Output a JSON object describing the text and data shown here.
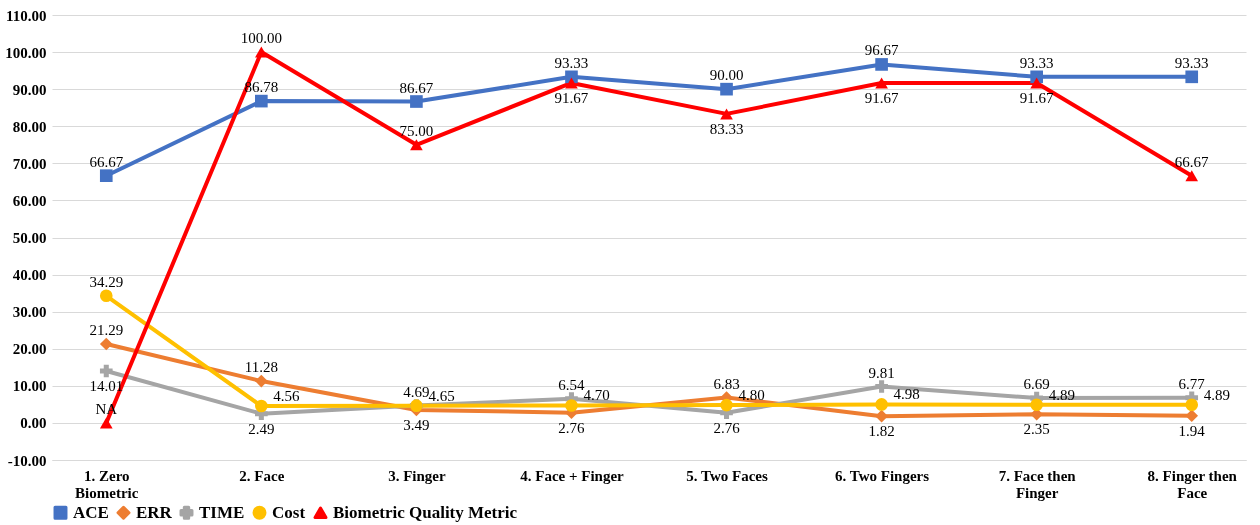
{
  "chart_data": {
    "type": "line",
    "categories": [
      "1. Zero Biometric",
      "2. Face",
      "3. Finger",
      "4. Face + Finger",
      "5. Two Faces",
      "6. Two Fingers",
      "7. Face then Finger",
      "8. Finger then Face"
    ],
    "series": [
      {
        "name": "ACE",
        "color": "#4472c4",
        "marker": "square",
        "values": [
          66.67,
          86.78,
          86.67,
          93.33,
          90.0,
          96.67,
          93.33,
          93.33
        ],
        "value_labels": [
          "66.67",
          "86.78",
          "86.67",
          "93.33",
          "90.00",
          "96.67",
          "93.33",
          "93.33"
        ]
      },
      {
        "name": "ERR",
        "color": "#ed7d31",
        "marker": "diamond",
        "values": [
          21.29,
          11.28,
          3.49,
          2.76,
          6.83,
          1.82,
          2.35,
          1.94
        ],
        "value_labels": [
          "21.29",
          "11.28",
          "3.49",
          "2.76",
          "6.83",
          "1.82",
          "2.35",
          "1.94"
        ]
      },
      {
        "name": "TIME",
        "color": "#a5a5a5",
        "marker": "cross",
        "values": [
          14.01,
          2.49,
          4.69,
          6.54,
          2.76,
          9.81,
          6.69,
          6.77
        ],
        "value_labels": [
          "14.01",
          "2.49",
          "4.69",
          "6.54",
          "2.76",
          "9.81",
          "6.69",
          "6.77"
        ]
      },
      {
        "name": "Cost",
        "color": "#ffc000",
        "marker": "circle",
        "values": [
          34.29,
          4.56,
          4.65,
          4.7,
          4.8,
          4.98,
          4.89,
          4.89
        ],
        "value_labels": [
          "34.29",
          "4.56",
          "4.65",
          "4.70",
          "4.80",
          "4.98",
          "4.89",
          "4.89"
        ]
      },
      {
        "name": "Biometric Quality Metric",
        "color": "#ff0000",
        "marker": "triangle",
        "values": [
          0,
          100.0,
          75.0,
          91.67,
          83.33,
          91.67,
          91.67,
          66.67
        ],
        "value_labels": [
          "NA",
          "100.00",
          "75.00",
          "91.67",
          "83.33",
          "91.67",
          "91.67",
          "66.67"
        ]
      }
    ],
    "ylim": [
      -10,
      110
    ],
    "yticks": [
      {
        "value": -10,
        "label": "-10.00"
      },
      {
        "value": 0,
        "label": "0.00"
      },
      {
        "value": 10,
        "label": "10.00"
      },
      {
        "value": 20,
        "label": "20.00"
      },
      {
        "value": 30,
        "label": "30.00"
      },
      {
        "value": 40,
        "label": "40.00"
      },
      {
        "value": 50,
        "label": "50.00"
      },
      {
        "value": 60,
        "label": "60.00"
      },
      {
        "value": 70,
        "label": "70.00"
      },
      {
        "value": 80,
        "label": "80.00"
      },
      {
        "value": 90,
        "label": "90.00"
      },
      {
        "value": 100,
        "label": "100.00"
      },
      {
        "value": 110,
        "label": "110.00"
      }
    ],
    "grid": "y",
    "legend": "bottom",
    "line_style": "solid"
  }
}
